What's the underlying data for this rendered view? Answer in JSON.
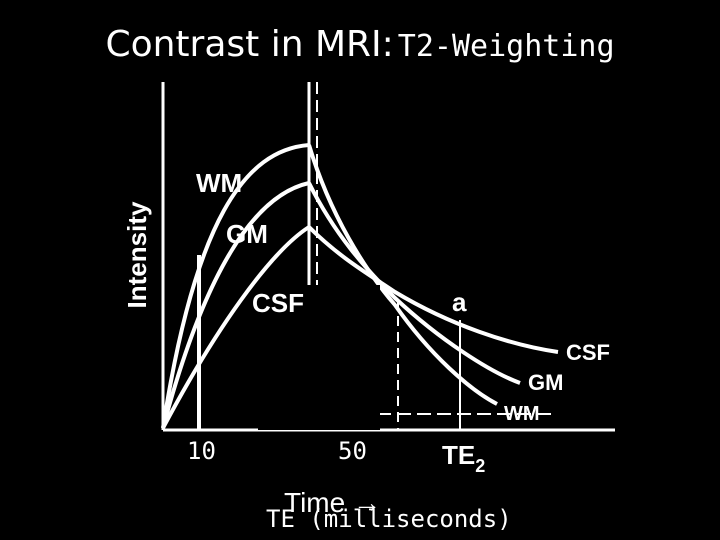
{
  "title": "Contrast in MRI:",
  "subtitle": "T2-Weighting",
  "colors": {
    "background": "#000000",
    "foreground": "#ffffff"
  },
  "chart_data": {
    "type": "line",
    "ylabel": "Intensity",
    "xlabel": "Time →",
    "x_axis_caption": "TE (milliseconds)",
    "tick_labels": [
      "10",
      "50",
      "TE2"
    ],
    "annotation": "a",
    "series": [
      {
        "name": "WM",
        "shape": "rise to highest peak, decays fastest, ends lowest"
      },
      {
        "name": "GM",
        "shape": "rise to middle peak, intermediate decay"
      },
      {
        "name": "CSF",
        "shape": "rise to lowest peak, decays slowest, ends highest"
      }
    ]
  }
}
